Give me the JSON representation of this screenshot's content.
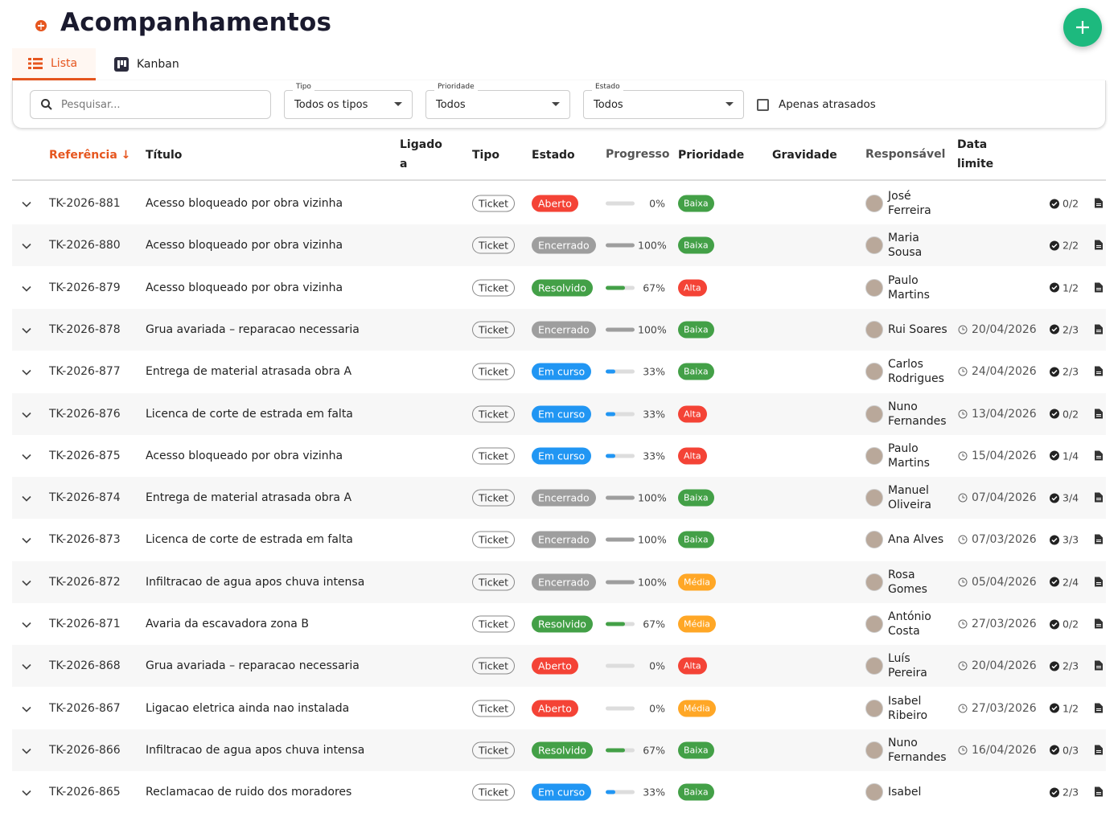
{
  "header": {
    "title": "Acompanhamentos"
  },
  "tabs": [
    "Lista",
    "Kanban"
  ],
  "filters": {
    "search_placeholder": "Pesquisar...",
    "tipo": {
      "label": "Tipo",
      "value": "Todos os tipos"
    },
    "prioridade": {
      "label": "Prioridade",
      "value": "Todos"
    },
    "estado": {
      "label": "Estado",
      "value": "Todos"
    },
    "overdue": "Apenas atrasados"
  },
  "table": {
    "columns": [
      "Referência",
      "Título",
      "Ligado a",
      "Tipo",
      "Estado",
      "Progresso",
      "Prioridade",
      "Gravidade",
      "Responsável",
      "Data limite"
    ],
    "status_colors": {
      "Aberto": "#f44336",
      "Encerrado": "#9e9e9e",
      "Resolvido": "#43a047",
      "Em curso": "#2196f3"
    },
    "priority_colors": {
      "Baixa": "#43a047",
      "Alta": "#f44336",
      "Média": "#ffa726"
    },
    "rows": [
      {
        "ref": "TK-2026-881",
        "title": "Acesso bloqueado por obra vizinha",
        "type": "Ticket",
        "state": "Aberto",
        "progress": 0,
        "progress_label": "0%",
        "priority": "Baixa",
        "responsible": "José Ferreira",
        "due": null,
        "checklist": "0/2"
      },
      {
        "ref": "TK-2026-880",
        "title": "Acesso bloqueado por obra vizinha",
        "type": "Ticket",
        "state": "Encerrado",
        "progress": 100,
        "progress_label": "100%",
        "priority": "Baixa",
        "responsible": "Maria Sousa",
        "due": null,
        "checklist": "2/2"
      },
      {
        "ref": "TK-2026-879",
        "title": "Acesso bloqueado por obra vizinha",
        "type": "Ticket",
        "state": "Resolvido",
        "progress": 67,
        "progress_label": "67%",
        "priority": "Alta",
        "responsible": "Paulo Martins",
        "due": null,
        "checklist": "1/2"
      },
      {
        "ref": "TK-2026-878",
        "title": "Grua avariada – reparacao necessaria",
        "type": "Ticket",
        "state": "Encerrado",
        "progress": 100,
        "progress_label": "100%",
        "priority": "Baixa",
        "responsible": "Rui Soares",
        "due": "20/04/2026",
        "checklist": "2/3"
      },
      {
        "ref": "TK-2026-877",
        "title": "Entrega de material atrasada obra A",
        "type": "Ticket",
        "state": "Em curso",
        "progress": 33,
        "progress_label": "33%",
        "priority": "Baixa",
        "responsible": "Carlos Rodrigues",
        "due": "24/04/2026",
        "checklist": "2/3"
      },
      {
        "ref": "TK-2026-876",
        "title": "Licenca de corte de estrada em falta",
        "type": "Ticket",
        "state": "Em curso",
        "progress": 33,
        "progress_label": "33%",
        "priority": "Alta",
        "responsible": "Nuno Fernandes",
        "due": "13/04/2026",
        "checklist": "0/2"
      },
      {
        "ref": "TK-2026-875",
        "title": "Acesso bloqueado por obra vizinha",
        "type": "Ticket",
        "state": "Em curso",
        "progress": 33,
        "progress_label": "33%",
        "priority": "Alta",
        "responsible": "Paulo Martins",
        "due": "15/04/2026",
        "checklist": "1/4"
      },
      {
        "ref": "TK-2026-874",
        "title": "Entrega de material atrasada obra A",
        "type": "Ticket",
        "state": "Encerrado",
        "progress": 100,
        "progress_label": "100%",
        "priority": "Baixa",
        "responsible": "Manuel Oliveira",
        "due": "07/04/2026",
        "checklist": "3/4"
      },
      {
        "ref": "TK-2026-873",
        "title": "Licenca de corte de estrada em falta",
        "type": "Ticket",
        "state": "Encerrado",
        "progress": 100,
        "progress_label": "100%",
        "priority": "Baixa",
        "responsible": "Ana Alves",
        "due": "07/03/2026",
        "checklist": "3/3"
      },
      {
        "ref": "TK-2026-872",
        "title": "Infiltracao de agua apos chuva intensa",
        "type": "Ticket",
        "state": "Encerrado",
        "progress": 100,
        "progress_label": "100%",
        "priority": "Média",
        "responsible": "Rosa Gomes",
        "due": "05/04/2026",
        "checklist": "2/4"
      },
      {
        "ref": "TK-2026-871",
        "title": "Avaria da escavadora zona B",
        "type": "Ticket",
        "state": "Resolvido",
        "progress": 67,
        "progress_label": "67%",
        "priority": "Média",
        "responsible": "António Costa",
        "due": "27/03/2026",
        "checklist": "0/2"
      },
      {
        "ref": "TK-2026-868",
        "title": "Grua avariada – reparacao necessaria",
        "type": "Ticket",
        "state": "Aberto",
        "progress": 0,
        "progress_label": "0%",
        "priority": "Alta",
        "responsible": "Luís Pereira",
        "due": "20/04/2026",
        "checklist": "2/3"
      },
      {
        "ref": "TK-2026-867",
        "title": "Ligacao eletrica ainda nao instalada",
        "type": "Ticket",
        "state": "Aberto",
        "progress": 0,
        "progress_label": "0%",
        "priority": "Média",
        "responsible": "Isabel Ribeiro",
        "due": "27/03/2026",
        "checklist": "1/2"
      },
      {
        "ref": "TK-2026-866",
        "title": "Infiltracao de agua apos chuva intensa",
        "type": "Ticket",
        "state": "Resolvido",
        "progress": 67,
        "progress_label": "67%",
        "priority": "Baixa",
        "responsible": "Nuno Fernandes",
        "due": "16/04/2026",
        "checklist": "0/3"
      },
      {
        "ref": "TK-2026-865",
        "title": "Reclamacao de ruido dos moradores",
        "type": "Ticket",
        "state": "Em curso",
        "progress": 33,
        "progress_label": "33%",
        "priority": "Baixa",
        "responsible": "Isabel",
        "due": null,
        "checklist": "2/3"
      }
    ]
  }
}
